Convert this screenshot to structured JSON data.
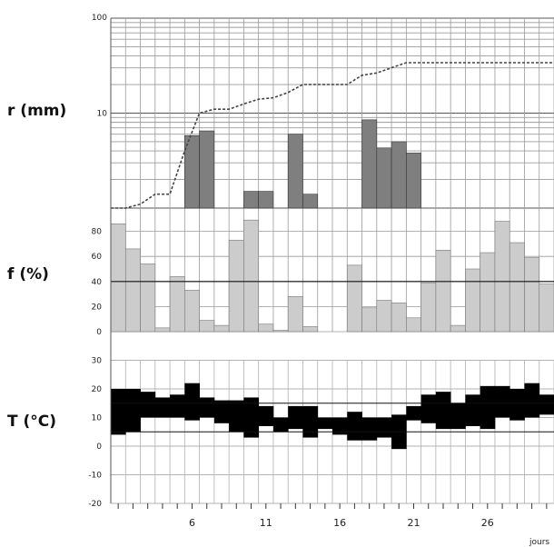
{
  "labels": {
    "rain": "r (mm)",
    "humidity": "f (%)",
    "temperature": "T (°C)",
    "x_unit": "jours"
  },
  "chart_data": [
    {
      "type": "bar",
      "name": "rain",
      "ylabel": "r (mm)",
      "scale": "log",
      "ylim": [
        1,
        100
      ],
      "tick_labels": [
        "100",
        "10"
      ],
      "bar_color": "#7f7f7f",
      "x": [
        1,
        2,
        3,
        4,
        5,
        6,
        7,
        8,
        9,
        10,
        11,
        12,
        13,
        14,
        15,
        16,
        17,
        18,
        19,
        20,
        21,
        22,
        23,
        24,
        25,
        26,
        27,
        28,
        29,
        30
      ],
      "values": [
        0,
        0,
        0,
        0,
        0,
        5.8,
        6.5,
        0,
        0,
        1.5,
        1.5,
        0,
        6,
        1.4,
        0,
        0,
        0,
        8.5,
        4.3,
        5,
        3.8,
        0,
        0,
        0,
        0,
        0,
        0,
        0,
        0,
        0
      ],
      "cumulative": [
        1,
        1,
        1.1,
        1.4,
        1.4,
        4,
        10,
        11,
        11,
        12.5,
        14,
        14.5,
        16.5,
        20,
        20,
        20,
        20,
        25,
        26.5,
        30,
        34,
        34,
        34,
        34,
        34,
        34,
        34,
        34,
        34,
        34
      ]
    },
    {
      "type": "bar",
      "name": "humidity",
      "ylabel": "f (%)",
      "ylim": [
        0,
        100
      ],
      "tick_labels": [
        "80",
        "60",
        "40",
        "20",
        "0"
      ],
      "bar_color": "#cccccc",
      "reference_line": 40,
      "x": [
        1,
        2,
        3,
        4,
        5,
        6,
        7,
        8,
        9,
        10,
        11,
        12,
        13,
        14,
        15,
        16,
        17,
        18,
        19,
        20,
        21,
        22,
        23,
        24,
        25,
        26,
        27,
        28,
        29,
        30
      ],
      "values": [
        86,
        66,
        54,
        3,
        44,
        33,
        9,
        5,
        73,
        89,
        6,
        1,
        28,
        4,
        0,
        0,
        53,
        19,
        25,
        23,
        11,
        39,
        65,
        5,
        50,
        63,
        88,
        71,
        59,
        38
      ]
    },
    {
      "type": "range-bar",
      "name": "temperature",
      "ylabel": "T (°C)",
      "ylim": [
        -20,
        30
      ],
      "tick_labels": [
        "30",
        "20",
        "10",
        "0",
        "-10",
        "-20"
      ],
      "bar_color": "#000000",
      "reference_lines": [
        5,
        15
      ],
      "x": [
        1,
        2,
        3,
        4,
        5,
        6,
        7,
        8,
        9,
        10,
        11,
        12,
        13,
        14,
        15,
        16,
        17,
        18,
        19,
        20,
        21,
        22,
        23,
        24,
        25,
        26,
        27,
        28,
        29,
        30
      ],
      "min": [
        4,
        5,
        10,
        10,
        10,
        9,
        10,
        8,
        5,
        3,
        7,
        5,
        6,
        3,
        6,
        4,
        2,
        2,
        3,
        -1,
        9,
        8,
        6,
        6,
        7,
        6,
        10,
        9,
        10,
        11
      ],
      "max": [
        20,
        20,
        19,
        17,
        18,
        22,
        17,
        16,
        16,
        17,
        14,
        10,
        14,
        14,
        10,
        10,
        12,
        10,
        10,
        11,
        14,
        18,
        19,
        15,
        18,
        21,
        21,
        20,
        22,
        18
      ],
      "x_ticks": [
        6,
        11,
        16,
        21,
        26
      ],
      "xlabel": "jours"
    }
  ]
}
